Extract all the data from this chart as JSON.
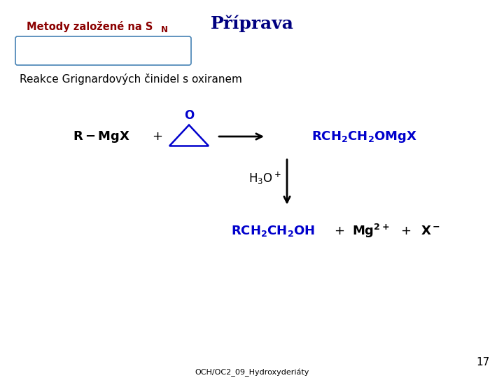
{
  "title": "Příprava",
  "title_fontsize": 18,
  "title_color": "#000080",
  "box_label": "Metody založené na S",
  "box_label_sub": "N",
  "box_color": "#8B0000",
  "box_edge_color": "#4682B4",
  "subtitle": "Reakce Grignardových činidel s oxiranem",
  "subtitle_fontsize": 11,
  "subtitle_color": "#000000",
  "reaction_color_blue": "#0000CC",
  "reaction_color_black": "#000000",
  "arrow_color": "#000000",
  "page_number": "17",
  "footer": "OCH/OC2_09_Hydroxyderiáty",
  "background_color": "#ffffff"
}
